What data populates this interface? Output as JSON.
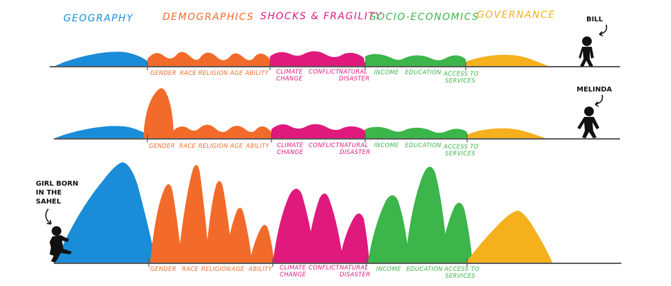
{
  "categories": [
    {
      "id": "geo",
      "label": "GEOGRAPHY",
      "color": "#1a8cd8"
    },
    {
      "id": "demo",
      "label": "DEMOGRAPHICS",
      "color": "#f26b2a"
    },
    {
      "id": "shock",
      "label": "SHOCKS & FRAGILITY",
      "color": "#e0197d"
    },
    {
      "id": "socio",
      "label": "SOCIO-ECONOMICS",
      "color": "#3cb54a"
    },
    {
      "id": "gov",
      "label": "GOVERNANCE",
      "color": "#f5b01e"
    }
  ],
  "sub_labels": {
    "gender": "GENDER",
    "race": "RACE",
    "religion": "RELIGION",
    "age": "AGE",
    "ability": "ABILITY",
    "climate_1": "CLIMATE",
    "climate_2": "CHANGE",
    "conflict": "CONFLICT",
    "natural_1": "NATURAL",
    "natural_2": "DISASTER",
    "income": "INCOME",
    "education": "EDUCATION",
    "access_1": "ACCESS TO",
    "access_2": "SERVICES"
  },
  "people": {
    "bill": "BILL",
    "melinda": "MELINDA",
    "girl_1": "GIRL BORN",
    "girl_2": "IN THE",
    "girl_3": "SAHEL"
  },
  "icons": {
    "person_figure": "person-silhouette-icon",
    "pointer_arrow": "curved-arrow-icon"
  }
}
